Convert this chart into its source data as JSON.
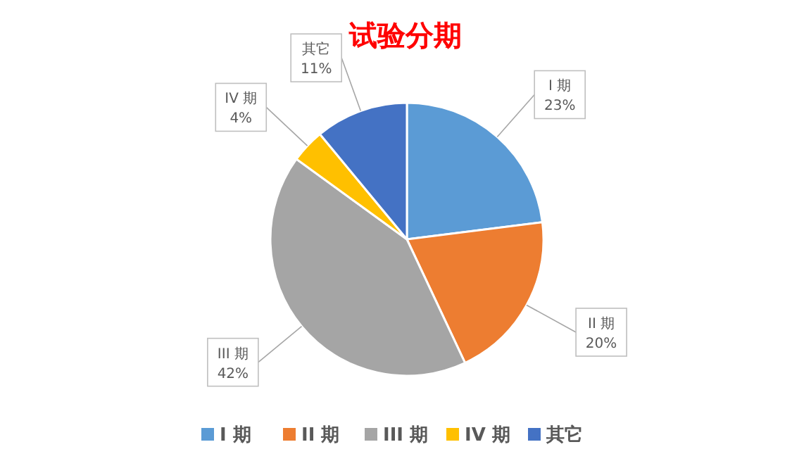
{
  "chart_data": {
    "type": "pie",
    "title": "试验分期",
    "categories": [
      "I 期",
      "II 期",
      "III 期",
      "IV 期",
      "其它"
    ],
    "values": [
      23,
      20,
      42,
      4,
      11
    ],
    "colors": [
      "#5b9bd5",
      "#ed7d31",
      "#a5a5a5",
      "#ffc000",
      "#4472c4"
    ],
    "value_labels": [
      "23%",
      "20%",
      "42%",
      "4%",
      "11%"
    ],
    "legend": "bottom"
  }
}
